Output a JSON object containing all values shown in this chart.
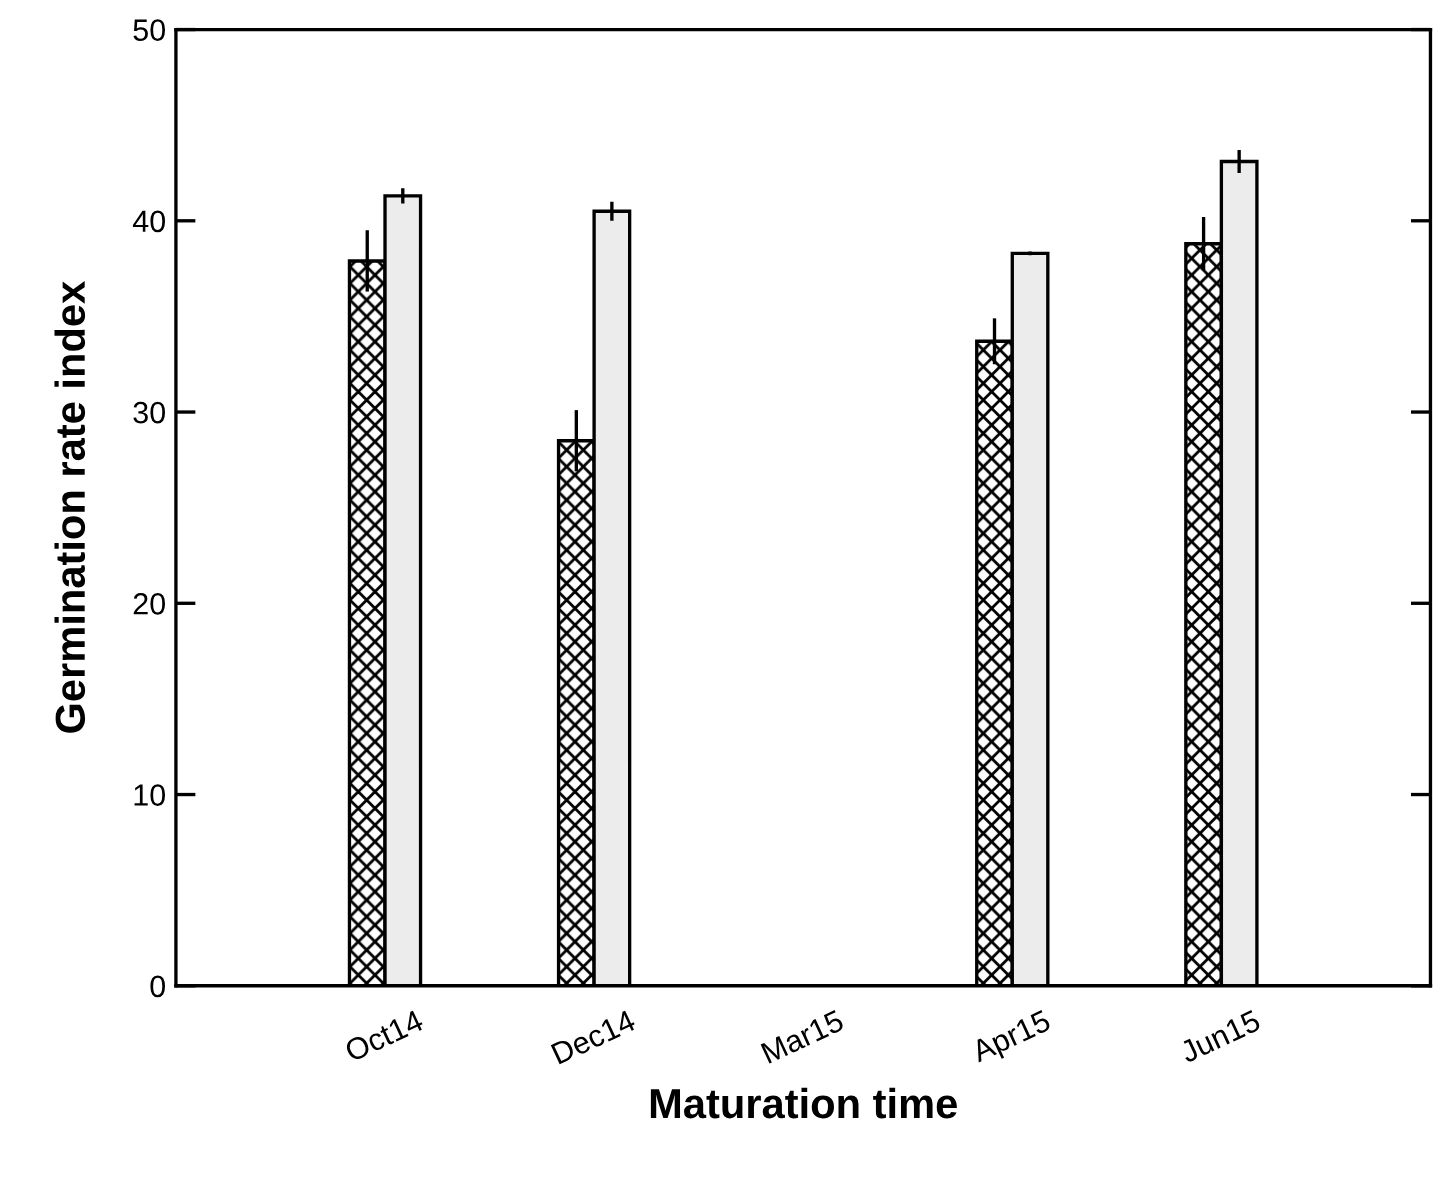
{
  "chart_data": {
    "type": "bar",
    "xlabel": "Maturation time",
    "ylabel": "Germination rate index",
    "categories": [
      "Oct14",
      "Dec14",
      "Mar15",
      "Apr15",
      "Jun15"
    ],
    "series": [
      {
        "color": "#000000",
        "values": [
          37.9,
          28.5,
          null,
          33.7,
          38.8
        ],
        "errors": [
          1.6,
          1.6,
          null,
          1.2,
          1.4
        ]
      },
      {
        "color": "#ececec",
        "values": [
          41.3,
          40.5,
          null,
          38.3,
          43.1
        ],
        "errors": [
          0.4,
          0.5,
          null,
          0.1,
          0.6
        ]
      }
    ],
    "ylim": [
      0,
      50
    ],
    "yticks": [
      0,
      10,
      20,
      30,
      40,
      50
    ],
    "grid": false,
    "legend": false
  }
}
